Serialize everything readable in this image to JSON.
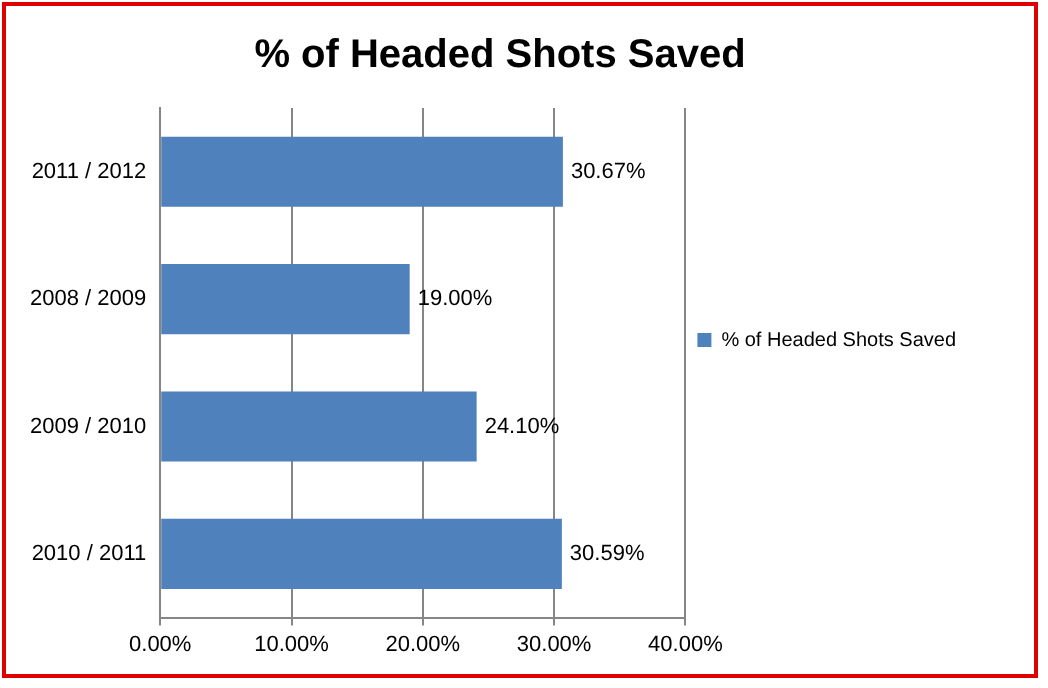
{
  "chart_data": {
    "type": "bar",
    "title": "% of Headed Shots Saved",
    "orientation": "horizontal",
    "categories": [
      "2011 / 2012",
      "2008 / 2009",
      "2009 / 2010",
      "2010 / 2011"
    ],
    "series": [
      {
        "name": "% of Headed Shots Saved",
        "color": "#4f81bd",
        "values": [
          30.67,
          19.0,
          24.1,
          30.59
        ],
        "value_labels": [
          "30.67%",
          "19.00%",
          "24.10%",
          "30.59%"
        ]
      }
    ],
    "xlim": [
      0,
      40
    ],
    "xticks": [
      {
        "value": 0,
        "label": "0.00%"
      },
      {
        "value": 10,
        "label": "10.00%"
      },
      {
        "value": 20,
        "label": "20.00%"
      },
      {
        "value": 30,
        "label": "30.00%"
      },
      {
        "value": 40,
        "label": "40.00%"
      }
    ],
    "grid": "x",
    "legend": "right"
  }
}
